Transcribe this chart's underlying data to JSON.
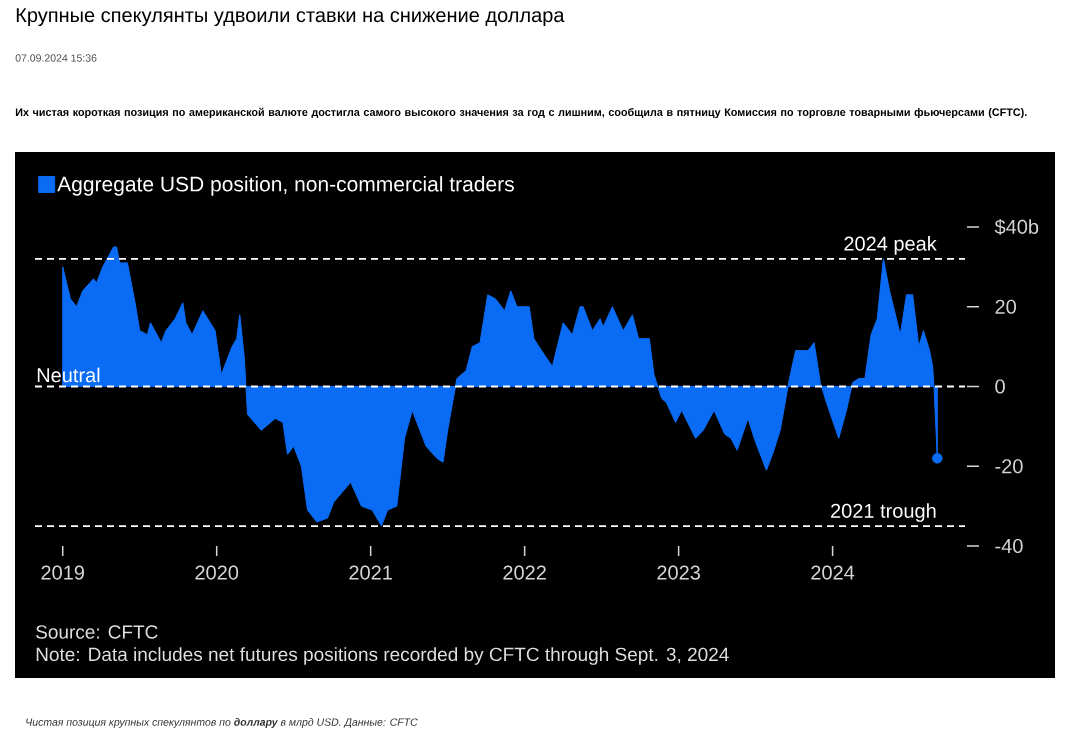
{
  "chart_data": {
    "type": "area",
    "title": "Крупные спекулянты удвоили ставки на снижение доллара",
    "annotations": [
      "07.09.2024 15:36",
      "Их чистая короткая позиция по американской валюте достигла самого высокого значения за год с лишним, сообщила в пятницу Комиссия по торговле товарными фьючерсами (CFTC).",
      "Source: CFTC",
      "Note: Data includes net futures positions recorded by CFTC through Sept. 3, 2024",
      "Чистая позиция крупных спекулянтов по **доллару** в млрд USD. Данные: CFTC"
    ],
    "xlim": [
      2018.82,
      2024.86
    ],
    "xticks": [
      2019,
      2020,
      2021,
      2022,
      2023,
      2024
    ],
    "ylim": [
      -40,
      40
    ],
    "yticks": [
      {
        "value": 40,
        "label": "$40b"
      },
      20,
      0,
      -20,
      -40
    ],
    "legend": "top left",
    "series": [
      {
        "name": "Aggregate USD position, non-commercial traders",
        "color": "#0a6cf5",
        "x": [
          2019.0,
          2019.05,
          2019.09,
          2019.13,
          2019.2,
          2019.22,
          2019.26,
          2019.33,
          2019.35,
          2019.37,
          2019.42,
          2019.47,
          2019.5,
          2019.55,
          2019.57,
          2019.64,
          2019.67,
          2019.73,
          2019.78,
          2019.8,
          2019.84,
          2019.91,
          2019.99,
          2020.03,
          2020.1,
          2020.13,
          2020.15,
          2020.18,
          2020.2,
          2020.29,
          2020.38,
          2020.43,
          2020.46,
          2020.5,
          2020.55,
          2020.59,
          2020.65,
          2020.72,
          2020.76,
          2020.87,
          2020.94,
          2021.01,
          2021.07,
          2021.11,
          2021.17,
          2021.22,
          2021.27,
          2021.36,
          2021.43,
          2021.47,
          2021.5,
          2021.56,
          2021.62,
          2021.66,
          2021.71,
          2021.76,
          2021.81,
          2021.87,
          2021.91,
          2021.95,
          2022.03,
          2022.06,
          2022.11,
          2022.18,
          2022.25,
          2022.31,
          2022.36,
          2022.38,
          2022.44,
          2022.49,
          2022.51,
          2022.57,
          2022.64,
          2022.7,
          2022.74,
          2022.81,
          2022.84,
          2022.89,
          2022.92,
          2022.98,
          2023.02,
          2023.11,
          2023.16,
          2023.23,
          2023.3,
          2023.34,
          2023.38,
          2023.45,
          2023.5,
          2023.57,
          2023.61,
          2023.66,
          2023.72,
          2023.76,
          2023.84,
          2023.88,
          2023.92,
          2023.96,
          2024.04,
          2024.09,
          2024.13,
          2024.17,
          2024.21,
          2024.25,
          2024.29,
          2024.33,
          2024.37,
          2024.44,
          2024.48,
          2024.52,
          2024.56,
          2024.59,
          2024.63,
          2024.65,
          2024.66,
          2024.68
        ],
        "values": [
          30,
          22,
          20,
          24,
          27,
          26,
          30,
          35,
          35,
          31,
          31,
          21,
          14,
          13,
          16,
          11,
          14,
          17,
          21,
          16,
          13,
          19,
          14,
          3,
          10,
          12,
          18,
          7,
          -7,
          -11,
          -8,
          -9,
          -17,
          -15,
          -20,
          -31,
          -34,
          -33,
          -29,
          -24,
          -30,
          -31,
          -35,
          -31,
          -30,
          -13,
          -6,
          -15,
          -18,
          -19,
          -11,
          2,
          4,
          10,
          11,
          23,
          22,
          19,
          24,
          20,
          20,
          12,
          9,
          5,
          16,
          13,
          20,
          20,
          14,
          17,
          15,
          20,
          14,
          18,
          12,
          12,
          3,
          -3,
          -4,
          -9,
          -6,
          -13,
          -11,
          -6,
          -12,
          -13,
          -16,
          -8,
          -14,
          -21,
          -17,
          -11,
          2,
          9,
          9,
          11,
          1,
          -4,
          -13,
          -6,
          1,
          2,
          2,
          13,
          17,
          32,
          24,
          13,
          23,
          23,
          10,
          14,
          9,
          5,
          -1,
          -18
        ]
      },
      {
        "type": "scatter",
        "color": "#0a6cf5",
        "marker": "circle",
        "x": [
          2024.68
        ],
        "values": [
          -18
        ]
      }
    ],
    "ref_lines": [
      {
        "axis": "y",
        "value": 0,
        "label": "Neutral",
        "color": "#ffffff",
        "line_style": "dashed"
      },
      {
        "axis": "y",
        "value": 32,
        "label": "2024 peak",
        "color": "#ffffff",
        "line_style": "dashed"
      },
      {
        "axis": "y",
        "value": -35,
        "label": "2021 trough",
        "color": "#ffffff",
        "line_style": "dashed"
      }
    ]
  }
}
